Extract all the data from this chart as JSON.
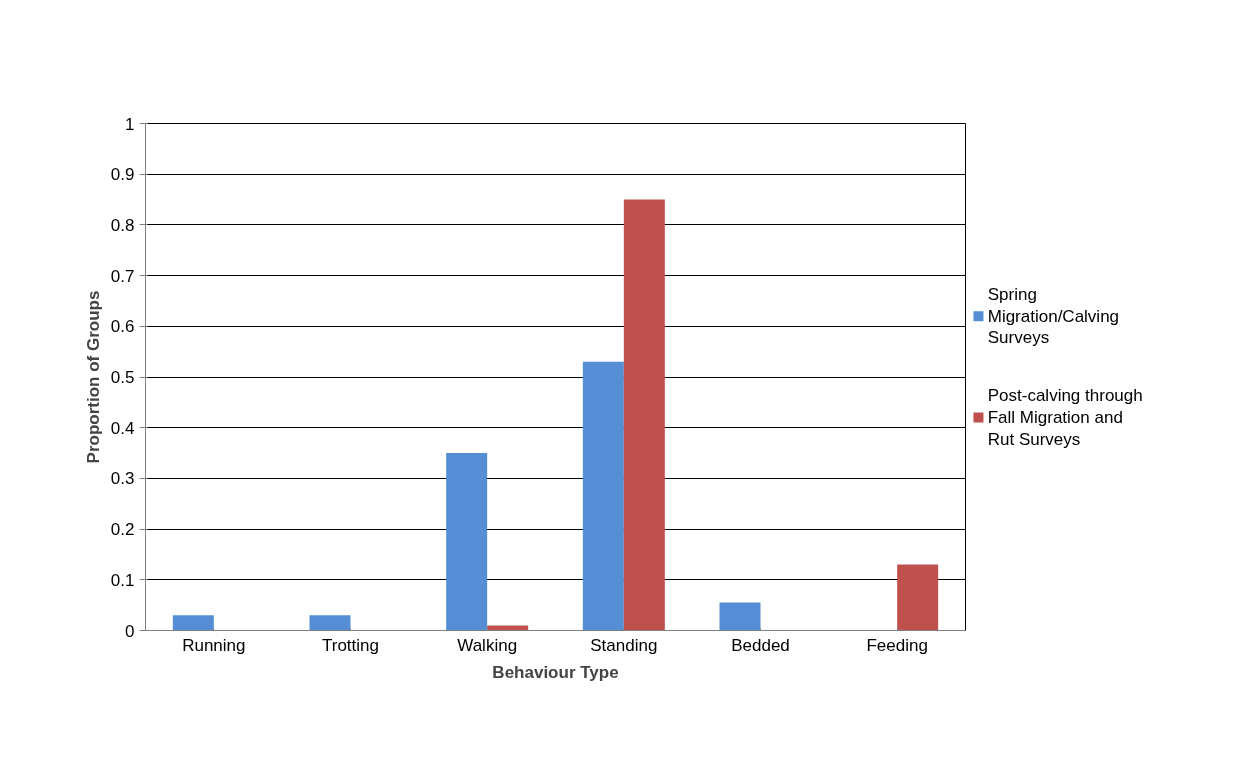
{
  "chart_data": {
    "type": "bar",
    "xlabel": "Behaviour Type",
    "ylabel": "Proportion of Groups",
    "categories": [
      "Running",
      "Trotting",
      "Walking",
      "Standing",
      "Bedded",
      "Feeding"
    ],
    "series": [
      {
        "name": "Spring Migration/Calving Surveys",
        "color": "#558ed5",
        "values": [
          0.03,
          0.03,
          0.35,
          0.53,
          0.055,
          0
        ]
      },
      {
        "name": "Post-calving through Fall Migration and Rut Surveys",
        "color": "#c0504d",
        "values": [
          0,
          0,
          0.01,
          0.85,
          0,
          0.13
        ]
      }
    ],
    "ylim": [
      0,
      1
    ],
    "yticks": [
      0,
      0.1,
      0.2,
      0.3,
      0.4,
      0.5,
      0.6,
      0.7,
      0.8,
      0.9,
      1
    ],
    "grid": "y",
    "legend": "right"
  }
}
